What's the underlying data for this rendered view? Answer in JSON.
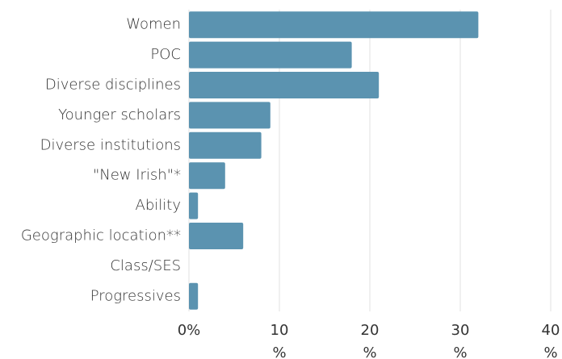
{
  "chart_data": {
    "type": "hbar",
    "categories": [
      "Women",
      "POC",
      "Diverse disciplines",
      "Younger scholars",
      "Diverse institutions",
      "\"New Irish\"*",
      "Ability",
      "Geographic location**",
      "Class/SES",
      "Progressives"
    ],
    "values": [
      32,
      18,
      21,
      9,
      8,
      4,
      1,
      6,
      0,
      1
    ],
    "color": "#5b93b0",
    "xlim": [
      0,
      40
    ],
    "xticks": [
      {
        "value": 0,
        "label": "0%"
      },
      {
        "value": 10,
        "label": "10 %"
      },
      {
        "value": 20,
        "label": "20 %"
      },
      {
        "value": 30,
        "label": "30 %"
      },
      {
        "value": 40,
        "label": "40 %"
      }
    ],
    "grid": true
  }
}
